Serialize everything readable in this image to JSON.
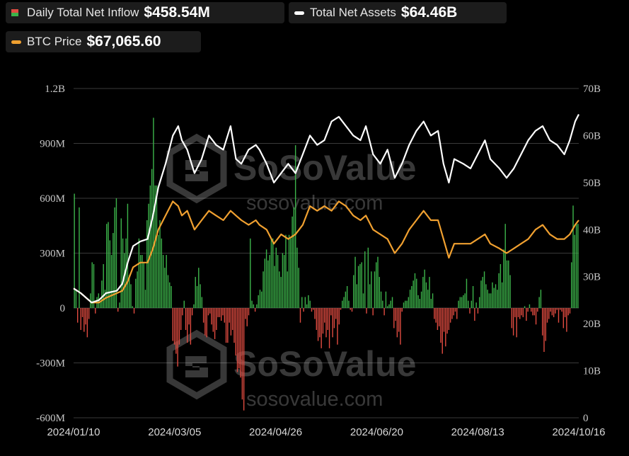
{
  "legend": {
    "inflow": {
      "label": "Daily Total Net Inflow",
      "value": "$458.54M"
    },
    "assets": {
      "label": "Total Net Assets",
      "value": "$64.46B"
    },
    "btc": {
      "label": "BTC Price",
      "value": "$67,065.60"
    }
  },
  "watermark": {
    "brand": "SoSoValue",
    "url": "sosovalue.com"
  },
  "colors": {
    "positive": "#3cb34a",
    "negative": "#e04b40",
    "assets_line": "#ffffff",
    "btc_line": "#f0a030",
    "grid": "#3a3a3a"
  },
  "chart_data": {
    "type": "bar",
    "left_axis": {
      "ticks": [
        "1.2B",
        "900M",
        "600M",
        "300M",
        "0",
        "-300M",
        "-600M"
      ],
      "range_musd": [
        -600,
        1200
      ]
    },
    "right_axis": {
      "ticks": [
        "70B",
        "60B",
        "50B",
        "40B",
        "30B",
        "20B",
        "10B",
        "0"
      ],
      "range_busd": [
        0,
        70
      ]
    },
    "x_ticks": [
      "2024/01/10",
      "2024/03/05",
      "2024/04/26",
      "2024/06/20",
      "2024/08/13",
      "2024/10/16"
    ],
    "x_range": [
      "2024/01/10",
      "2024/10/16"
    ],
    "grid": true,
    "series": [
      {
        "name": "Daily Total Net Inflow",
        "kind": "bar",
        "axis": "left",
        "unit": "M USD",
        "values": [
          625,
          100,
          -80,
          550,
          -120,
          -50,
          -130,
          -90,
          -160,
          -60,
          80,
          250,
          240,
          -30,
          60,
          80,
          40,
          150,
          240,
          100,
          460,
          470,
          370,
          290,
          410,
          550,
          600,
          -20,
          30,
          490,
          380,
          300,
          380,
          570,
          180,
          130,
          10,
          -30,
          160,
          200,
          380,
          290,
          290,
          250,
          100,
          480,
          570,
          670,
          760,
          1040,
          670,
          670,
          400,
          480,
          380,
          290,
          220,
          290,
          180,
          140,
          120,
          -180,
          -200,
          -250,
          -320,
          -200,
          -120,
          -40,
          40,
          -120,
          -190,
          -90,
          -200,
          -40,
          20,
          170,
          120,
          220,
          130,
          60,
          -80,
          -150,
          -160,
          -40,
          -30,
          -90,
          -130,
          -170,
          -120,
          -50,
          -50,
          -70,
          -40,
          -80,
          -190,
          -190,
          -80,
          -150,
          -120,
          -190,
          -260,
          -350,
          -330,
          -380,
          -500,
          -560,
          -60,
          -100,
          -40,
          380,
          40,
          20,
          -20,
          20,
          70,
          100,
          90,
          200,
          270,
          320,
          260,
          290,
          380,
          380,
          230,
          330,
          290,
          200,
          170,
          300,
          290,
          400,
          200,
          400,
          380,
          500,
          550,
          890,
          330,
          220,
          -80,
          60,
          -20,
          60,
          20,
          70,
          40,
          -20,
          -10,
          -60,
          -120,
          -180,
          -160,
          -220,
          -140,
          -80,
          -160,
          -120,
          -220,
          -40,
          -160,
          -110,
          -60,
          -200,
          -90,
          -10,
          40,
          60,
          90,
          120,
          40,
          -10,
          -20,
          180,
          280,
          130,
          230,
          240,
          250,
          80,
          310,
          -30,
          330,
          130,
          200,
          -40,
          200,
          250,
          280,
          170,
          90,
          40,
          -40,
          90,
          10,
          20,
          40,
          60,
          -110,
          -70,
          -160,
          -130,
          -200,
          -20,
          30,
          40,
          40,
          60,
          100,
          120,
          150,
          190,
          160,
          70,
          50,
          90,
          170,
          210,
          140,
          100,
          170,
          50,
          80,
          -60,
          -80,
          -120,
          -100,
          -190,
          -250,
          -130,
          -210,
          -140,
          -120,
          -80,
          -60,
          -40,
          -20,
          -60,
          40,
          60,
          60,
          70,
          80,
          160,
          40,
          -30,
          40,
          120,
          -70,
          30,
          -30,
          60,
          150,
          170,
          200,
          130,
          100,
          80,
          80,
          140,
          110,
          130,
          100,
          190,
          240,
          140,
          320,
          460,
          260,
          260,
          180,
          -110,
          -150,
          -50,
          -160,
          -50,
          -60,
          -40,
          -50,
          10,
          -70,
          -20,
          20,
          -20,
          -40,
          -40,
          -90,
          -20,
          60,
          100,
          -150,
          -240,
          -180,
          -80,
          -60,
          -20,
          -40,
          -50,
          -30,
          -10,
          -80,
          -10,
          -20,
          -110,
          -50,
          -130,
          -40,
          -30,
          250,
          560,
          400,
          460,
          460
        ]
      },
      {
        "name": "Total Net Assets",
        "kind": "line",
        "axis": "right",
        "unit": "B USD",
        "points": [
          [
            "2024/01/10",
            27.5
          ],
          [
            "2024/01/14",
            26.5
          ],
          [
            "2024/01/20",
            24.5
          ],
          [
            "2024/01/24",
            25
          ],
          [
            "2024/01/28",
            26.5
          ],
          [
            "2024/02/03",
            27
          ],
          [
            "2024/02/06",
            28.5
          ],
          [
            "2024/02/09",
            33
          ],
          [
            "2024/02/12",
            36.5
          ],
          [
            "2024/02/16",
            37.5
          ],
          [
            "2024/02/20",
            38
          ],
          [
            "2024/02/23",
            43
          ],
          [
            "2024/02/26",
            49
          ],
          [
            "2024/03/01",
            54
          ],
          [
            "2024/03/05",
            60
          ],
          [
            "2024/03/08",
            62
          ],
          [
            "2024/03/10",
            59
          ],
          [
            "2024/03/13",
            57
          ],
          [
            "2024/03/17",
            52
          ],
          [
            "2024/03/21",
            55
          ],
          [
            "2024/03/25",
            60
          ],
          [
            "2024/03/29",
            58
          ],
          [
            "2024/04/02",
            57
          ],
          [
            "2024/04/06",
            62
          ],
          [
            "2024/04/09",
            55
          ],
          [
            "2024/04/12",
            54
          ],
          [
            "2024/04/16",
            57
          ],
          [
            "2024/04/20",
            58
          ],
          [
            "2024/04/22",
            57
          ],
          [
            "2024/04/26",
            54
          ],
          [
            "2024/04/30",
            50
          ],
          [
            "2024/05/04",
            52
          ],
          [
            "2024/05/08",
            54
          ],
          [
            "2024/05/12",
            52
          ],
          [
            "2024/05/16",
            56
          ],
          [
            "2024/05/20",
            60
          ],
          [
            "2024/05/24",
            58
          ],
          [
            "2024/05/28",
            59
          ],
          [
            "2024/06/01",
            63
          ],
          [
            "2024/06/05",
            64
          ],
          [
            "2024/06/09",
            62
          ],
          [
            "2024/06/13",
            60
          ],
          [
            "2024/06/17",
            59
          ],
          [
            "2024/06/20",
            62
          ],
          [
            "2024/06/24",
            56
          ],
          [
            "2024/06/28",
            54
          ],
          [
            "2024/07/02",
            57
          ],
          [
            "2024/07/06",
            51
          ],
          [
            "2024/07/10",
            54
          ],
          [
            "2024/07/14",
            58
          ],
          [
            "2024/07/18",
            61
          ],
          [
            "2024/07/22",
            63
          ],
          [
            "2024/07/26",
            60
          ],
          [
            "2024/07/30",
            61
          ],
          [
            "2024/08/02",
            54
          ],
          [
            "2024/08/05",
            50
          ],
          [
            "2024/08/08",
            55
          ],
          [
            "2024/08/13",
            54
          ],
          [
            "2024/08/17",
            53
          ],
          [
            "2024/08/21",
            56
          ],
          [
            "2024/08/25",
            59
          ],
          [
            "2024/08/28",
            55
          ],
          [
            "2024/09/02",
            53
          ],
          [
            "2024/09/06",
            51
          ],
          [
            "2024/09/10",
            53
          ],
          [
            "2024/09/14",
            56
          ],
          [
            "2024/09/18",
            59
          ],
          [
            "2024/09/22",
            61
          ],
          [
            "2024/09/26",
            62
          ],
          [
            "2024/09/30",
            59
          ],
          [
            "2024/10/04",
            58
          ],
          [
            "2024/10/08",
            56
          ],
          [
            "2024/10/11",
            59
          ],
          [
            "2024/10/14",
            63
          ],
          [
            "2024/10/16",
            64.5
          ]
        ]
      },
      {
        "name": "BTC Price",
        "kind": "line",
        "axis": "right",
        "unit": "B USD (scaled)",
        "points": [
          [
            "2024/01/10",
            27.5
          ],
          [
            "2024/01/14",
            26.5
          ],
          [
            "2024/01/20",
            24.5
          ],
          [
            "2024/01/24",
            24.5
          ],
          [
            "2024/01/28",
            25.5
          ],
          [
            "2024/02/03",
            26.5
          ],
          [
            "2024/02/06",
            27
          ],
          [
            "2024/02/09",
            29
          ],
          [
            "2024/02/12",
            32
          ],
          [
            "2024/02/16",
            33
          ],
          [
            "2024/02/20",
            33
          ],
          [
            "2024/02/23",
            36
          ],
          [
            "2024/02/26",
            40
          ],
          [
            "2024/03/01",
            43
          ],
          [
            "2024/03/05",
            46
          ],
          [
            "2024/03/08",
            45
          ],
          [
            "2024/03/10",
            43
          ],
          [
            "2024/03/13",
            44
          ],
          [
            "2024/03/17",
            40
          ],
          [
            "2024/03/21",
            42
          ],
          [
            "2024/03/25",
            44
          ],
          [
            "2024/03/29",
            43
          ],
          [
            "2024/04/02",
            42
          ],
          [
            "2024/04/06",
            44
          ],
          [
            "2024/04/09",
            43
          ],
          [
            "2024/04/12",
            42
          ],
          [
            "2024/04/16",
            41
          ],
          [
            "2024/04/20",
            42
          ],
          [
            "2024/04/22",
            41
          ],
          [
            "2024/04/26",
            40
          ],
          [
            "2024/04/30",
            37
          ],
          [
            "2024/05/04",
            39
          ],
          [
            "2024/05/08",
            38
          ],
          [
            "2024/05/12",
            39
          ],
          [
            "2024/05/16",
            41
          ],
          [
            "2024/05/20",
            45
          ],
          [
            "2024/05/24",
            44
          ],
          [
            "2024/05/28",
            45
          ],
          [
            "2024/06/01",
            44
          ],
          [
            "2024/06/05",
            46
          ],
          [
            "2024/06/09",
            45
          ],
          [
            "2024/06/13",
            43
          ],
          [
            "2024/06/17",
            42
          ],
          [
            "2024/06/20",
            43
          ],
          [
            "2024/06/24",
            40
          ],
          [
            "2024/06/28",
            39
          ],
          [
            "2024/07/02",
            38
          ],
          [
            "2024/07/06",
            35
          ],
          [
            "2024/07/10",
            37
          ],
          [
            "2024/07/14",
            40
          ],
          [
            "2024/07/18",
            42
          ],
          [
            "2024/07/22",
            44
          ],
          [
            "2024/07/26",
            42
          ],
          [
            "2024/07/30",
            42
          ],
          [
            "2024/08/02",
            38
          ],
          [
            "2024/08/05",
            34
          ],
          [
            "2024/08/08",
            37
          ],
          [
            "2024/08/13",
            37
          ],
          [
            "2024/08/17",
            37
          ],
          [
            "2024/08/21",
            38
          ],
          [
            "2024/08/25",
            39
          ],
          [
            "2024/08/28",
            37
          ],
          [
            "2024/09/02",
            36
          ],
          [
            "2024/09/06",
            35
          ],
          [
            "2024/09/10",
            36
          ],
          [
            "2024/09/14",
            37
          ],
          [
            "2024/09/18",
            38
          ],
          [
            "2024/09/22",
            40
          ],
          [
            "2024/09/26",
            41
          ],
          [
            "2024/09/30",
            39
          ],
          [
            "2024/10/04",
            38
          ],
          [
            "2024/10/08",
            38
          ],
          [
            "2024/10/11",
            39
          ],
          [
            "2024/10/14",
            41
          ],
          [
            "2024/10/16",
            42
          ]
        ]
      }
    ]
  }
}
